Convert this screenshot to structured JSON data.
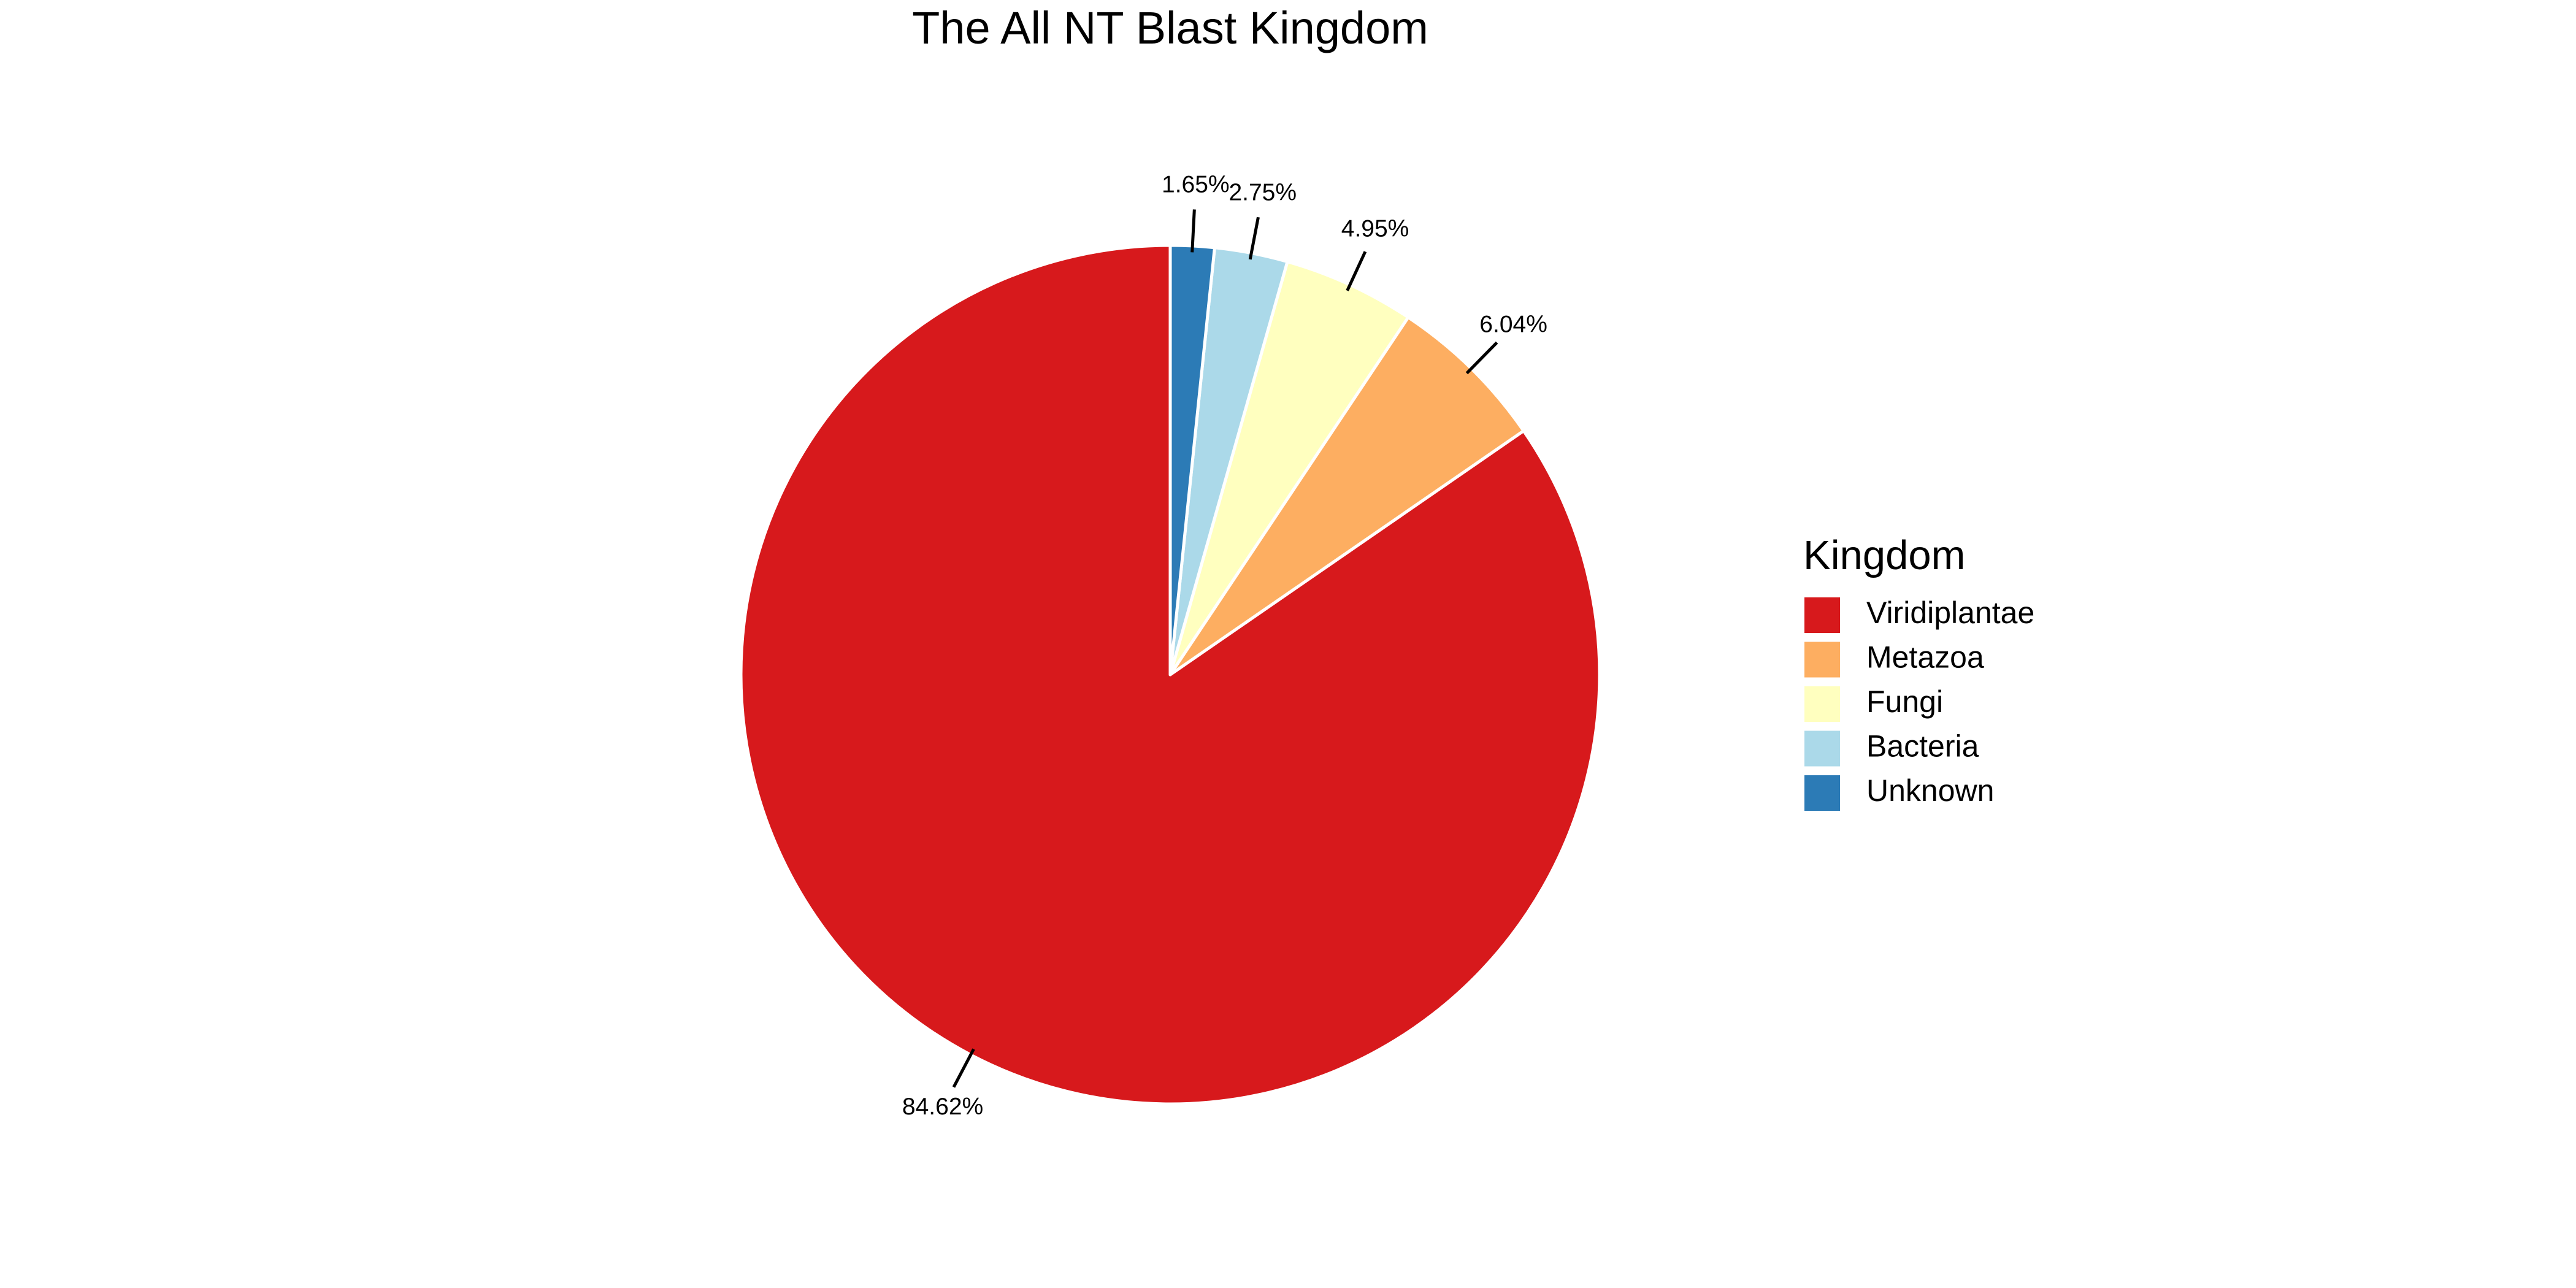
{
  "chart_data": {
    "type": "pie",
    "title": "The All NT Blast Kingdom",
    "legend_title": "Kingdom",
    "legend_position": "right",
    "start_angle": "top",
    "direction": "counterclockwise",
    "slices": [
      {
        "name": "Viridiplantae",
        "value": 84.62,
        "label": "84.62%",
        "color": "#d7191c"
      },
      {
        "name": "Metazoa",
        "value": 6.04,
        "label": "6.04%",
        "color": "#fdae61"
      },
      {
        "name": "Fungi",
        "value": 4.95,
        "label": "4.95%",
        "color": "#ffffbf"
      },
      {
        "name": "Bacteria",
        "value": 2.75,
        "label": "2.75%",
        "color": "#abd9e9"
      },
      {
        "name": "Unknown",
        "value": 1.65,
        "label": "1.65%",
        "color": "#2c7bb6"
      }
    ]
  }
}
